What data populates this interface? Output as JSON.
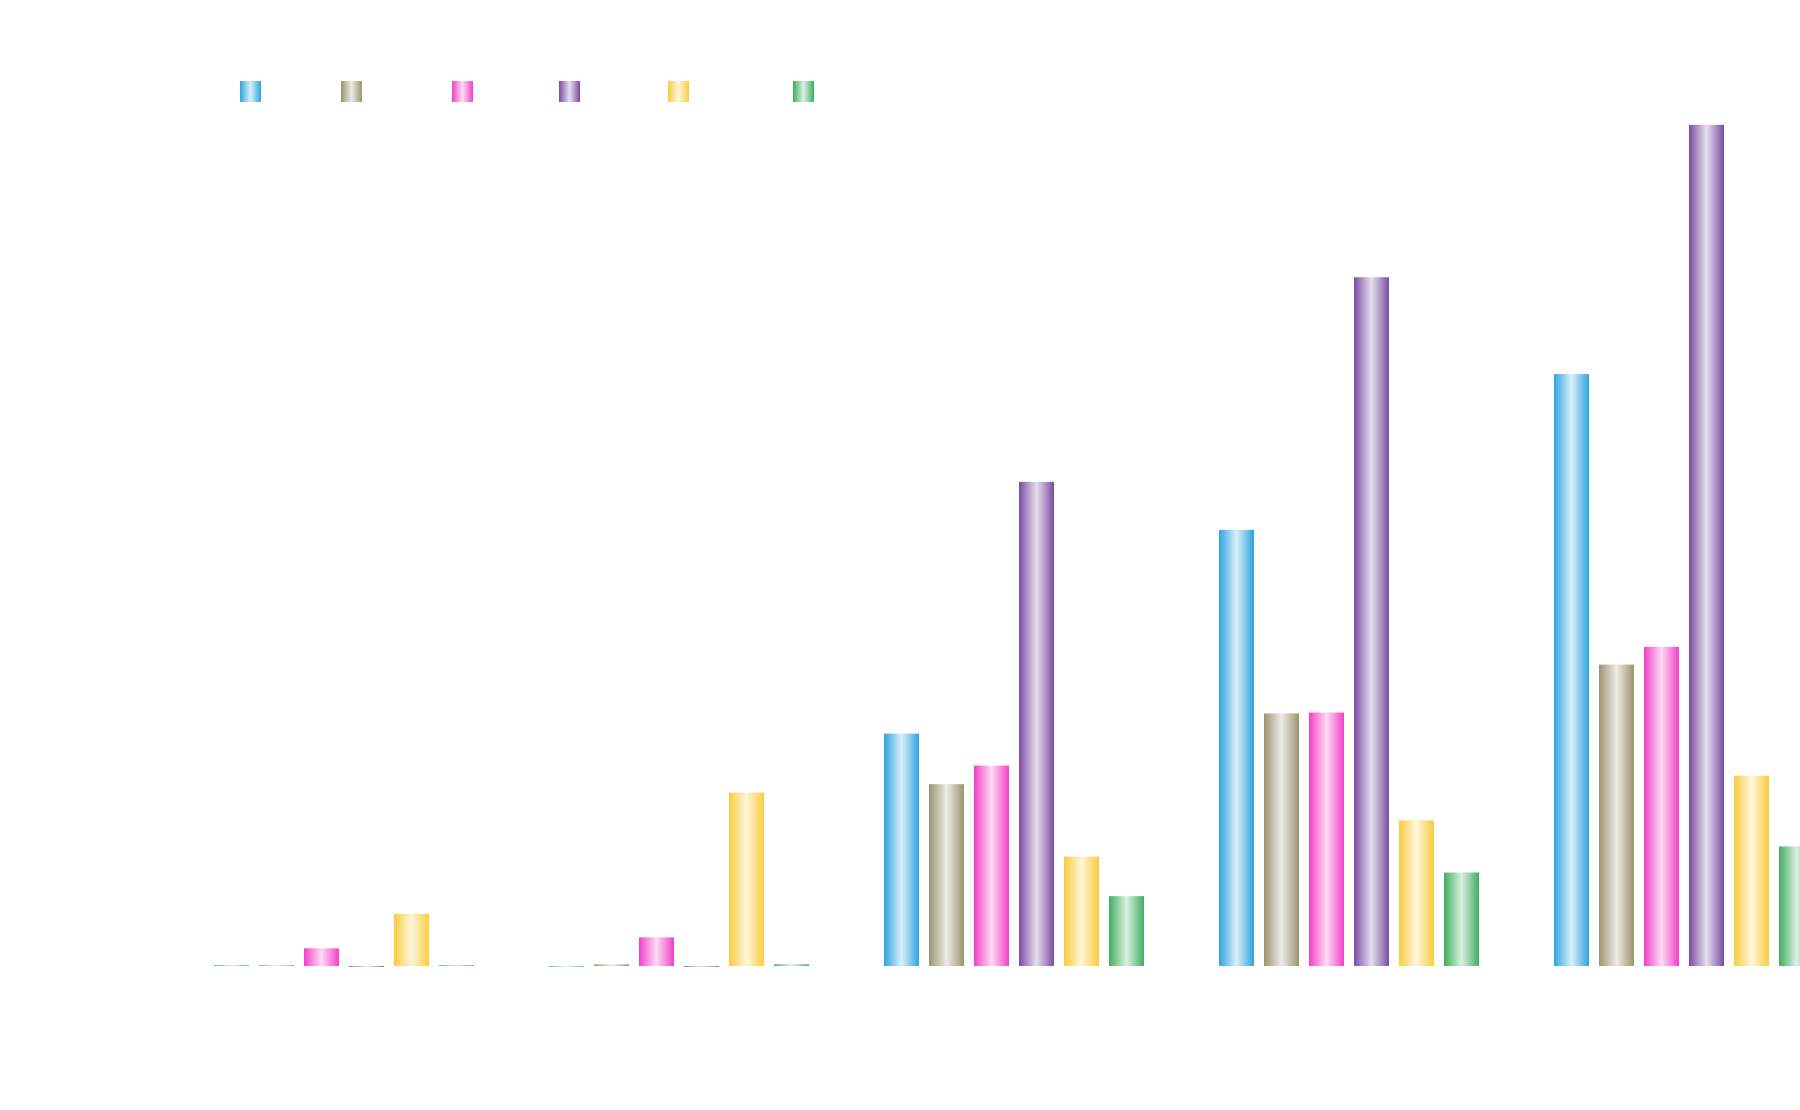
{
  "chart_data": {
    "type": "bar",
    "title": "",
    "xlabel": "",
    "ylabel": "",
    "categories": [
      "",
      "",
      "",
      "",
      ""
    ],
    "ylim": [
      0,
      100
    ],
    "grid": false,
    "legend": {
      "position": "top-left",
      "orientation": "horizontal"
    },
    "series": [
      {
        "color": "#2fa4e0",
        "values": [
          0.1,
          0.0,
          27.6,
          51.8,
          70.3
        ]
      },
      {
        "color": "#9c9370",
        "values": [
          0.1,
          0.2,
          21.6,
          30.0,
          35.8
        ]
      },
      {
        "color": "#f23fc7",
        "values": [
          2.1,
          3.4,
          23.8,
          30.1,
          37.9
        ]
      },
      {
        "color": "#7b4ba3",
        "values": [
          0.0,
          0.0,
          57.5,
          81.8,
          99.9
        ]
      },
      {
        "color": "#f9cc3d",
        "values": [
          6.2,
          20.6,
          13.0,
          17.3,
          22.6
        ]
      },
      {
        "color": "#3fae60",
        "values": [
          0.1,
          0.2,
          8.3,
          11.1,
          14.2
        ]
      }
    ]
  }
}
